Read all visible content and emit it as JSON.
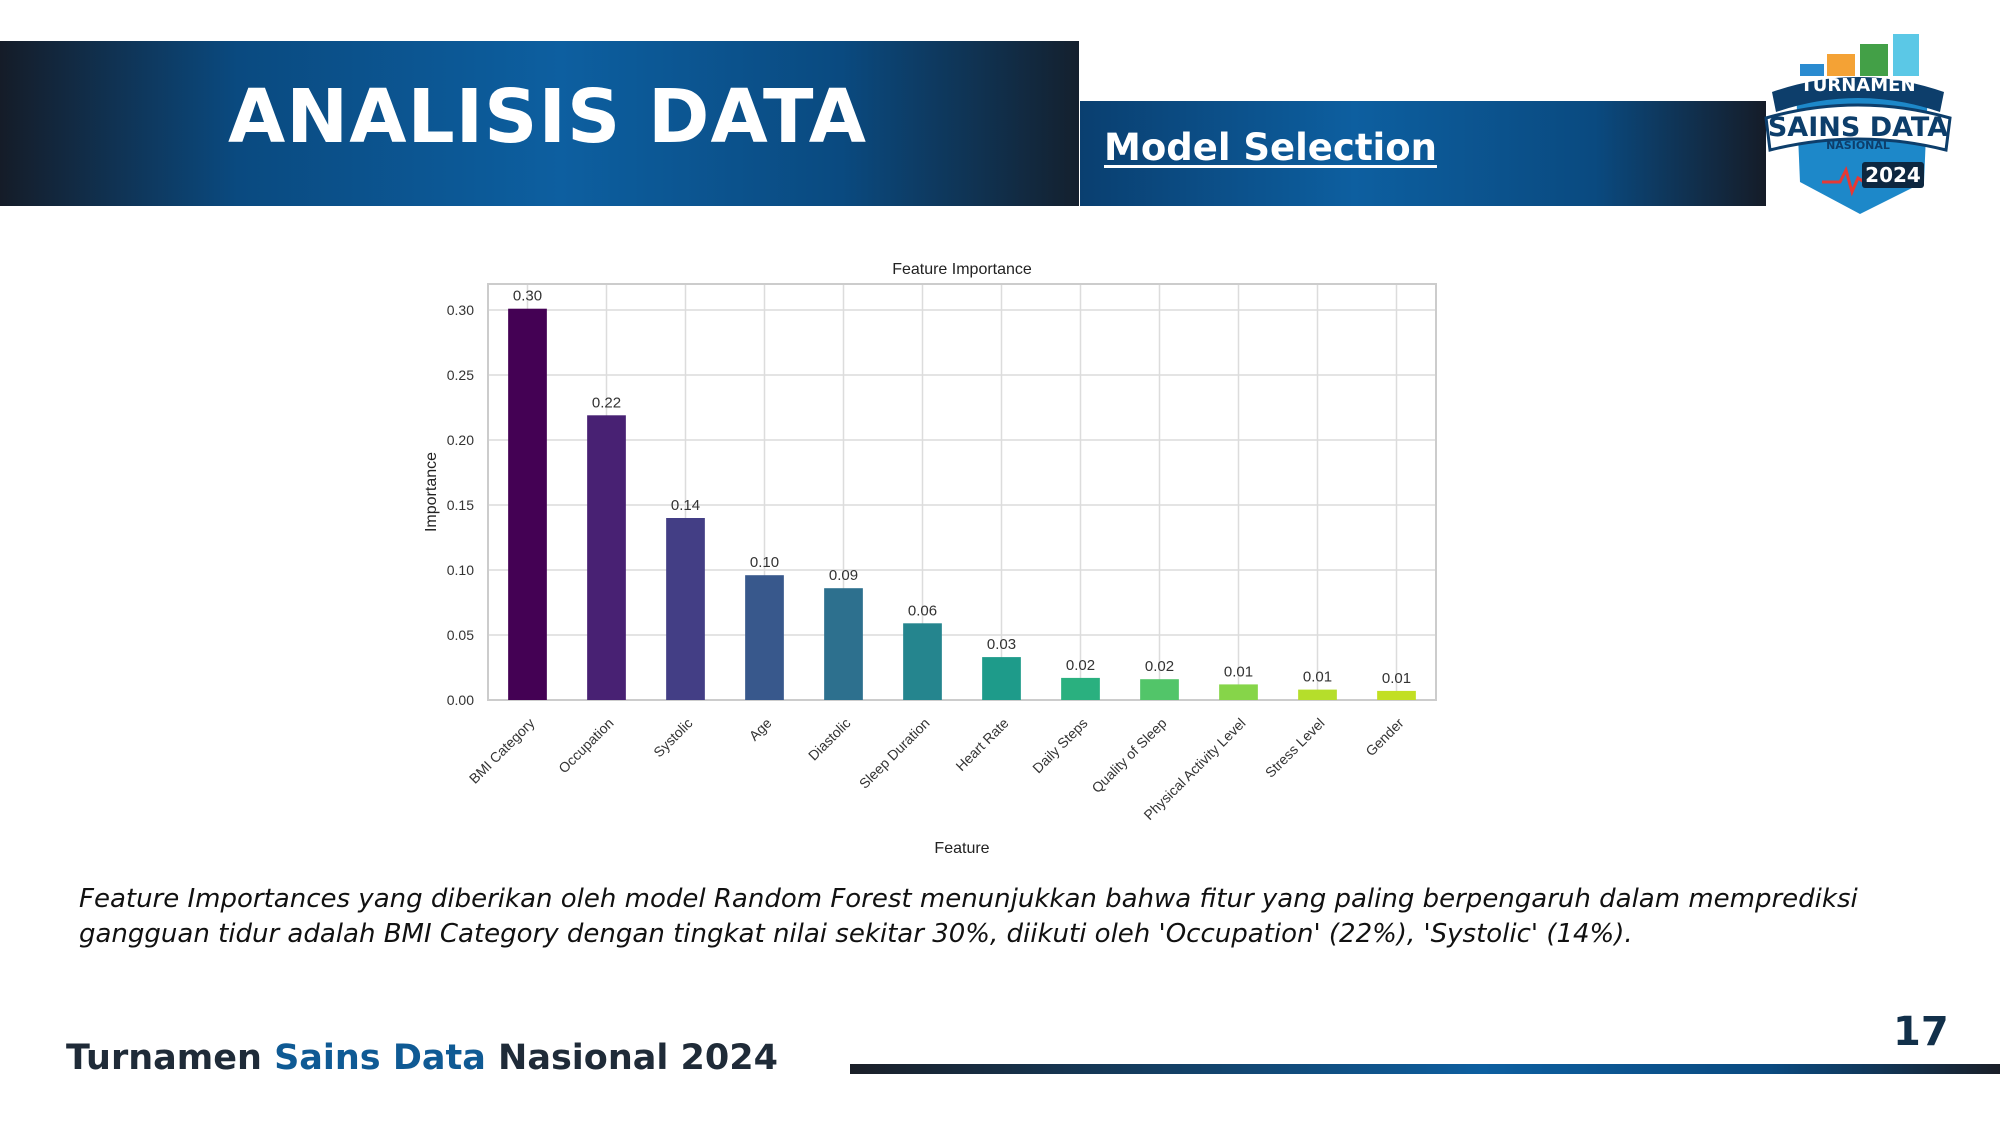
{
  "header": {
    "title": "ANALISIS DATA",
    "subtitle": "Model Selection"
  },
  "logo": {
    "line1": "TURNAMEN",
    "line2": "SAINS DATA",
    "line3": "NASIONAL",
    "year": "2024",
    "icon": "tournament-badge-logo"
  },
  "chart_data": {
    "type": "bar",
    "title": "Feature Importance",
    "xlabel": "Feature",
    "ylabel": "Importance",
    "ylim": [
      0,
      0.32
    ],
    "grid": true,
    "yticks": [
      0.0,
      0.05,
      0.1,
      0.15,
      0.2,
      0.25,
      0.3
    ],
    "ytick_labels": [
      "0.00",
      "0.05",
      "0.10",
      "0.15",
      "0.20",
      "0.25",
      "0.30"
    ],
    "categories": [
      "BMI Category",
      "Occupation",
      "Systolic",
      "Age",
      "Diastolic",
      "Sleep Duration",
      "Heart Rate",
      "Daily Steps",
      "Quality of Sleep",
      "Physical Activity Level",
      "Stress Level",
      "Gender"
    ],
    "values": [
      0.301,
      0.219,
      0.14,
      0.096,
      0.086,
      0.059,
      0.033,
      0.017,
      0.016,
      0.012,
      0.008,
      0.007
    ],
    "data_labels": [
      "0.30",
      "0.22",
      "0.14",
      "0.10",
      "0.09",
      "0.06",
      "0.03",
      "0.02",
      "0.02",
      "0.01",
      "0.01",
      "0.01"
    ],
    "colors": [
      "#440154",
      "#482173",
      "#433e85",
      "#38588c",
      "#2d708e",
      "#25858e",
      "#1e9b8a",
      "#2ab07f",
      "#52c569",
      "#86d549",
      "#b5de2b",
      "#c2df23"
    ]
  },
  "description": "Feature Importances yang diberikan oleh model Random Forest menunjukkan bahwa fitur yang paling berpengaruh dalam memprediksi gangguan tidur adalah BMI Category dengan tingkat nilai sekitar 30%, diikuti oleh 'Occupation' (22%), 'Systolic' (14%).",
  "footer": {
    "title_part1": "Turnamen ",
    "title_part2": "Sains Data",
    "title_part3": " Nasional 2024",
    "page_number": "17"
  },
  "colors": {
    "brand_blue": "#0d5fa0",
    "dark_navy": "#151c28",
    "footer_text": "#1f2b38"
  }
}
